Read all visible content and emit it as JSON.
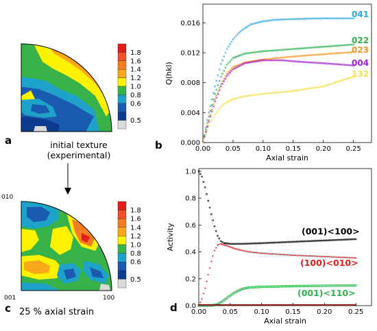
{
  "panels": {
    "a": {
      "letter": "a",
      "caption_line1": "initial texture",
      "caption_line2": "(experimental)"
    },
    "b": {
      "letter": "b"
    },
    "c": {
      "letter": "c",
      "caption": "25 % axial strain",
      "pole_labels": {
        "top": "010",
        "left": "001",
        "right": "100"
      }
    },
    "d": {
      "letter": "d"
    }
  },
  "colorbar": {
    "ticks": [
      "1.8",
      "1.6",
      "1.4",
      "1.2",
      "1.0",
      "0.8",
      "0.6",
      "0.5"
    ],
    "colors": [
      "#e41a1c",
      "#f0502a",
      "#f37d21",
      "#f9a81b",
      "#fff200",
      "#37b34a",
      "#1fa2c9",
      "#1a5bb0",
      "#0d3b8e",
      "#d9d9d9"
    ]
  },
  "chart_data": [
    {
      "type": "scatter",
      "id": "Q-vs-strain",
      "xlabel": "Axial strain",
      "ylabel": "Q(hkl)",
      "xlim": [
        0,
        0.28
      ],
      "ylim": [
        0,
        0.0185
      ],
      "xticks": [
        "0.00",
        "0.05",
        "0.10",
        "0.15",
        "0.20",
        "0.25"
      ],
      "yticks": [
        "0.000",
        "0.004",
        "0.008",
        "0.012",
        "0.016"
      ],
      "series": [
        {
          "name": "041",
          "color": "#29a9e1",
          "points": [
            [
              0,
              0
            ],
            [
              0.01,
              0.004
            ],
            [
              0.02,
              0.0075
            ],
            [
              0.03,
              0.0105
            ],
            [
              0.04,
              0.0125
            ],
            [
              0.05,
              0.0138
            ],
            [
              0.06,
              0.0147
            ],
            [
              0.07,
              0.0153
            ],
            [
              0.08,
              0.0158
            ],
            [
              0.1,
              0.0162
            ],
            [
              0.12,
              0.0164
            ],
            [
              0.15,
              0.0165
            ],
            [
              0.2,
              0.0166
            ],
            [
              0.25,
              0.0166
            ]
          ]
        },
        {
          "name": "022",
          "color": "#2bb24c",
          "points": [
            [
              0,
              0
            ],
            [
              0.01,
              0.0035
            ],
            [
              0.02,
              0.0065
            ],
            [
              0.03,
              0.0088
            ],
            [
              0.04,
              0.0104
            ],
            [
              0.05,
              0.0113
            ],
            [
              0.07,
              0.0119
            ],
            [
              0.1,
              0.0122
            ],
            [
              0.15,
              0.0125
            ],
            [
              0.2,
              0.0128
            ],
            [
              0.25,
              0.0131
            ]
          ]
        },
        {
          "name": "023",
          "color": "#f7941d",
          "points": [
            [
              0,
              0
            ],
            [
              0.01,
              0.003
            ],
            [
              0.02,
              0.0058
            ],
            [
              0.03,
              0.0078
            ],
            [
              0.04,
              0.0092
            ],
            [
              0.05,
              0.0101
            ],
            [
              0.07,
              0.0107
            ],
            [
              0.1,
              0.0111
            ],
            [
              0.15,
              0.0115
            ],
            [
              0.2,
              0.0118
            ],
            [
              0.25,
              0.0121
            ]
          ]
        },
        {
          "name": "004",
          "color": "#a020d0",
          "points": [
            [
              0,
              0
            ],
            [
              0.01,
              0.0028
            ],
            [
              0.02,
              0.0055
            ],
            [
              0.03,
              0.0075
            ],
            [
              0.04,
              0.0089
            ],
            [
              0.05,
              0.0098
            ],
            [
              0.07,
              0.0106
            ],
            [
              0.1,
              0.011
            ],
            [
              0.13,
              0.011
            ],
            [
              0.16,
              0.0108
            ],
            [
              0.2,
              0.0106
            ],
            [
              0.25,
              0.0103
            ]
          ]
        },
        {
          "name": "132",
          "color": "#f2e24c",
          "points": [
            [
              0,
              0
            ],
            [
              0.01,
              0.0022
            ],
            [
              0.02,
              0.0038
            ],
            [
              0.03,
              0.0048
            ],
            [
              0.04,
              0.0054
            ],
            [
              0.05,
              0.0058
            ],
            [
              0.07,
              0.0062
            ],
            [
              0.1,
              0.0065
            ],
            [
              0.15,
              0.0069
            ],
            [
              0.2,
              0.0075
            ],
            [
              0.25,
              0.0088
            ]
          ]
        }
      ]
    },
    {
      "type": "scatter",
      "id": "activity-vs-strain",
      "xlabel": "Axial strain",
      "ylabel": "Activity",
      "xlim": [
        0,
        0.275
      ],
      "ylim": [
        0,
        1.02
      ],
      "xticks": [
        "0.00",
        "0.05",
        "0.10",
        "0.15",
        "0.20",
        "0.25"
      ],
      "yticks": [
        "0.0",
        "0.2",
        "0.4",
        "0.6",
        "0.8",
        "1.0"
      ],
      "series": [
        {
          "name": "(001)<100>",
          "color": "#000000",
          "marker": "x",
          "points": [
            [
              0,
              1.0
            ],
            [
              0.005,
              0.96
            ],
            [
              0.01,
              0.88
            ],
            [
              0.015,
              0.78
            ],
            [
              0.02,
              0.68
            ],
            [
              0.025,
              0.59
            ],
            [
              0.03,
              0.52
            ],
            [
              0.035,
              0.48
            ],
            [
              0.04,
              0.465
            ],
            [
              0.05,
              0.46
            ],
            [
              0.07,
              0.46
            ],
            [
              0.1,
              0.465
            ],
            [
              0.15,
              0.475
            ],
            [
              0.2,
              0.485
            ],
            [
              0.25,
              0.495
            ]
          ]
        },
        {
          "name": "(100)<010>",
          "color": "#e41a1c",
          "marker": "+",
          "points": [
            [
              0,
              0
            ],
            [
              0.005,
              0.05
            ],
            [
              0.01,
              0.13
            ],
            [
              0.015,
              0.23
            ],
            [
              0.02,
              0.33
            ],
            [
              0.025,
              0.41
            ],
            [
              0.03,
              0.45
            ],
            [
              0.035,
              0.46
            ],
            [
              0.045,
              0.445
            ],
            [
              0.06,
              0.42
            ],
            [
              0.08,
              0.4
            ],
            [
              0.1,
              0.39
            ],
            [
              0.15,
              0.375
            ],
            [
              0.2,
              0.365
            ],
            [
              0.25,
              0.355
            ]
          ]
        },
        {
          "name": "(001)<110>",
          "color": "#2bb24c",
          "marker": "square",
          "points": [
            [
              0,
              0
            ],
            [
              0.02,
              0.0
            ],
            [
              0.03,
              0.01
            ],
            [
              0.04,
              0.04
            ],
            [
              0.05,
              0.075
            ],
            [
              0.06,
              0.105
            ],
            [
              0.07,
              0.125
            ],
            [
              0.08,
              0.135
            ],
            [
              0.1,
              0.14
            ],
            [
              0.15,
              0.145
            ],
            [
              0.2,
              0.148
            ],
            [
              0.25,
              0.15
            ]
          ]
        },
        {
          "name": "",
          "color": "#8b1a1a",
          "marker": "dot",
          "points": [
            [
              0,
              0
            ],
            [
              0.05,
              0
            ],
            [
              0.1,
              0
            ],
            [
              0.15,
              0
            ],
            [
              0.2,
              0
            ],
            [
              0.25,
              0
            ]
          ]
        }
      ]
    }
  ]
}
